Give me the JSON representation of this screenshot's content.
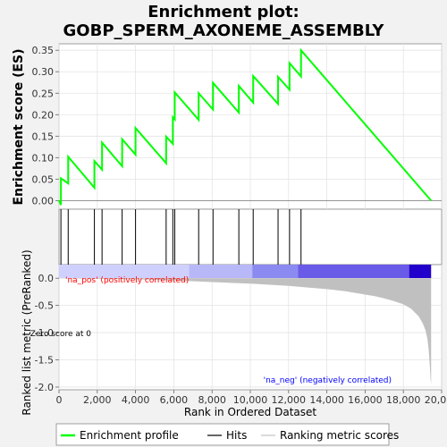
{
  "chart_data": {
    "type": "line",
    "title_line1": "Enrichment plot:",
    "title_line2": "GOBP_SPERM_AXONEME_ASSEMBLY",
    "ylabel_top": "Enrichment score (ES)",
    "ylabel_bottom": "Ranked list metric (PreRanked)",
    "xlabel": "Rank in Ordered Dataset",
    "xlim": [
      0,
      20000
    ],
    "x_ticks": [
      0,
      2000,
      4000,
      6000,
      8000,
      10000,
      12000,
      14000,
      16000,
      18000,
      20000
    ],
    "x_tick_labels": [
      "0",
      "2,000",
      "4,000",
      "6,000",
      "8,000",
      "10,000",
      "12,000",
      "14,000",
      "16,000",
      "18,000",
      "20,000"
    ],
    "es_ylim": [
      -0.02,
      0.365
    ],
    "es_ticks": [
      0.0,
      0.05,
      0.1,
      0.15,
      0.2,
      0.25,
      0.3,
      0.35
    ],
    "es_tick_labels": [
      "0.00",
      "0.05",
      "0.10",
      "0.15",
      "0.20",
      "0.25",
      "0.30",
      "0.35"
    ],
    "metric_ylim": [
      -2.05,
      0.25
    ],
    "metric_ticks": [
      0.0,
      -0.5,
      -1.0,
      -1.5,
      -2.0
    ],
    "metric_tick_labels": [
      "0.0",
      "-0.5",
      "-1.0",
      "-1.5",
      "-2.0"
    ],
    "hits": [
      100,
      480,
      1850,
      2250,
      3300,
      4000,
      5600,
      5950,
      6050,
      7300,
      8050,
      9400,
      10150,
      11450,
      12050,
      12650
    ],
    "es_series": {
      "name": "Enrichment profile",
      "x": [
        0,
        100,
        100,
        480,
        480,
        1850,
        1850,
        2250,
        2250,
        3300,
        3300,
        4000,
        4000,
        5600,
        5600,
        5950,
        5950,
        6050,
        6050,
        7300,
        7300,
        8050,
        8050,
        9400,
        9400,
        10150,
        10150,
        11450,
        11450,
        12050,
        12050,
        12650,
        12650,
        19450
      ],
      "y": [
        0.0,
        -0.01,
        0.052,
        0.04,
        0.102,
        0.03,
        0.092,
        0.072,
        0.135,
        0.08,
        0.143,
        0.107,
        0.169,
        0.087,
        0.149,
        0.132,
        0.194,
        0.189,
        0.252,
        0.188,
        0.25,
        0.212,
        0.274,
        0.205,
        0.267,
        0.228,
        0.29,
        0.225,
        0.288,
        0.258,
        0.32,
        0.289,
        0.35,
        0.0
      ]
    },
    "metric_series": {
      "name": "Ranking metric scores",
      "x": [
        0,
        2000,
        4000,
        6000,
        8000,
        10000,
        12000,
        13000,
        14000,
        15000,
        16000,
        16500,
        17000,
        17500,
        18000,
        18400,
        18800,
        19000,
        19150,
        19250,
        19320,
        19380,
        19420,
        19450
      ],
      "y": [
        0.0,
        -0.01,
        -0.02,
        -0.04,
        -0.07,
        -0.1,
        -0.14,
        -0.17,
        -0.2,
        -0.24,
        -0.3,
        -0.33,
        -0.37,
        -0.42,
        -0.48,
        -0.56,
        -0.7,
        -0.82,
        -0.95,
        -1.1,
        -1.3,
        -1.6,
        -1.85,
        -1.95
      ]
    },
    "color_bar": [
      {
        "x0": 0,
        "x1": 6800,
        "color": "#d0d0ff"
      },
      {
        "x0": 6800,
        "x1": 10100,
        "color": "#b8b8f8"
      },
      {
        "x0": 10100,
        "x1": 12500,
        "color": "#8a8af0"
      },
      {
        "x0": 12500,
        "x1": 18300,
        "color": "#6a5ae8"
      },
      {
        "x0": 18300,
        "x1": 19450,
        "color": "#2200cc"
      }
    ],
    "annotations": {
      "pos": "'na_pos' (positively correlated)",
      "neg": "'na_neg' (negatively correlated)",
      "zero_cross": "Zero score at 0"
    },
    "legend": {
      "profile": "Enrichment profile",
      "hits": "Hits",
      "metric": "Ranking metric scores"
    },
    "colors": {
      "profile": "#00ff00",
      "hits": "#000000",
      "metric": "#c0c0c0",
      "pos_text": "#ff0000",
      "neg_text": "#0000ff"
    }
  }
}
